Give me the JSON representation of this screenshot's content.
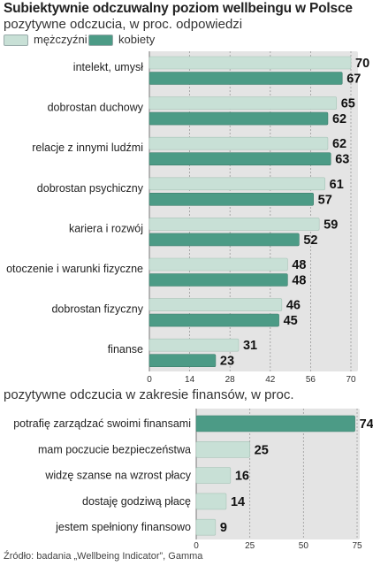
{
  "colors": {
    "men": "#c8e0d6",
    "women": "#4c9b86",
    "panel": "#e4e4e4",
    "grid": "#9a9a9a"
  },
  "chart_data": [
    {
      "type": "bar",
      "orientation": "horizontal",
      "title": "Subiektywnie odczuwalny poziom wellbeingu w Polsce",
      "subtitle": "pozytywne odczucia, w proc. odpowiedzi",
      "categories": [
        "intelekt, umysł",
        "dobrostan duchowy",
        "relacje z innymi ludźmi",
        "dobrostan psychiczny",
        "kariera i rozwój",
        "otoczenie i warunki fizyczne",
        "dobrostan fizyczny",
        "finanse"
      ],
      "series": [
        {
          "name": "mężczyźni",
          "values": [
            70,
            65,
            62,
            61,
            59,
            48,
            46,
            31
          ]
        },
        {
          "name": "kobiety",
          "values": [
            67,
            62,
            63,
            57,
            52,
            48,
            45,
            23
          ]
        }
      ],
      "xlim": [
        0,
        70
      ],
      "xticks": [
        0,
        14,
        28,
        42,
        56,
        70
      ],
      "grid": true,
      "legend": "top-left"
    },
    {
      "type": "bar",
      "orientation": "horizontal",
      "title": "pozytywne odczucia w zakresie finansów, w proc.",
      "categories": [
        "potrafię zarządzać swoimi finansami",
        "mam poczucie bezpieczeństwa",
        "widzę szanse na wzrost płacy",
        "dostaję godziwą płacę",
        "jestem spełniony finansowo"
      ],
      "values": [
        74,
        25,
        16,
        14,
        9
      ],
      "highlight_index": 0,
      "xlim": [
        0,
        75
      ],
      "xticks": [
        0,
        25,
        50,
        75
      ],
      "grid": true
    }
  ],
  "source": "Źródło: badania „Wellbeing Indicator”, Gamma"
}
